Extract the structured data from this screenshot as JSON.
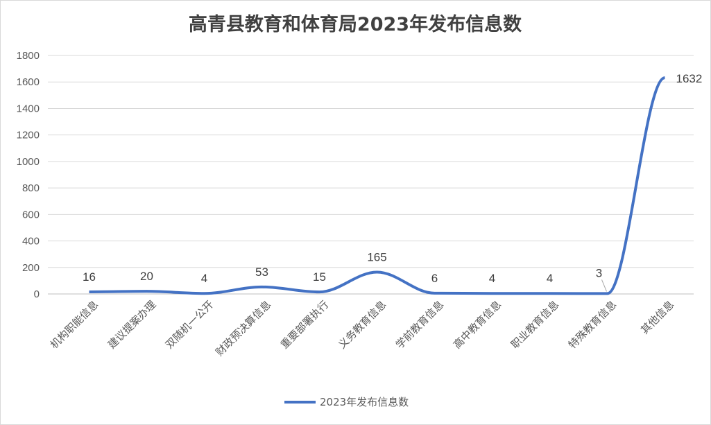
{
  "chart_data": {
    "type": "line",
    "title": "高青县教育和体育局2023年发布信息数",
    "categories": [
      "机构职能信息",
      "建议提案办理",
      "双随机一公开",
      "财政预决算信息",
      "重要部署执行",
      "义务教育信息",
      "学前教育信息",
      "高中教育信息",
      "职业教育信息",
      "特殊教育信息",
      "其他信息"
    ],
    "series": [
      {
        "name": "2023年发布信息数",
        "values": [
          16,
          20,
          4,
          53,
          15,
          165,
          6,
          4,
          4,
          3,
          1632
        ],
        "color": "#4472c4"
      }
    ],
    "ylim": [
      0,
      1800
    ],
    "yticks": [
      0,
      200,
      400,
      600,
      800,
      1000,
      1200,
      1400,
      1600,
      1800
    ],
    "grid": true,
    "data_labels": true,
    "legend": "bottom",
    "xlabel": "",
    "ylabel": ""
  }
}
